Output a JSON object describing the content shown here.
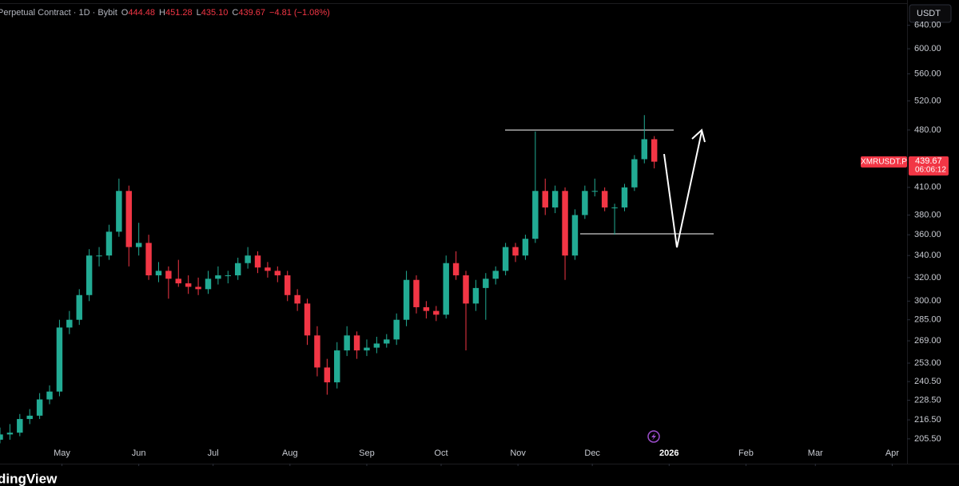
{
  "header": {
    "title": "Perpetual Contract · 1D · Bybit",
    "fields": [
      [
        "O",
        "444.48"
      ],
      [
        "H",
        "451.28"
      ],
      [
        "L",
        "435.10"
      ],
      [
        "C",
        "439.67"
      ]
    ],
    "change": "−4.81 (−1.08%)"
  },
  "currency": "USDT",
  "footer": {
    "brand": "dingView"
  },
  "chart_data": {
    "type": "candlestick",
    "log_scale": true,
    "grid": false,
    "up_color": "#22ab94",
    "down_color": "#f23645",
    "symbol": "XMRUSDT.P",
    "last_price": 439.67,
    "countdown": "06:06:12",
    "xlim": [
      0,
      366
    ],
    "xticks": [
      {
        "value": 25,
        "label": "May"
      },
      {
        "value": 56,
        "label": "Jun"
      },
      {
        "value": 86,
        "label": "Jul"
      },
      {
        "value": 117,
        "label": "Aug"
      },
      {
        "value": 148,
        "label": "Sep"
      },
      {
        "value": 178,
        "label": "Oct"
      },
      {
        "value": 209,
        "label": "Nov"
      },
      {
        "value": 239,
        "label": "Dec"
      },
      {
        "value": 270,
        "label": "2026"
      },
      {
        "value": 301,
        "label": "Feb"
      },
      {
        "value": 329,
        "label": "Mar"
      },
      {
        "value": 360,
        "label": "Apr"
      }
    ],
    "ylim": [
      201,
      686
    ],
    "yticks": [
      {
        "value": 640,
        "label": "640.00"
      },
      {
        "value": 600,
        "label": "600.00"
      },
      {
        "value": 560,
        "label": "560.00"
      },
      {
        "value": 520,
        "label": "520.00"
      },
      {
        "value": 480,
        "label": "480.00"
      },
      {
        "value": 410,
        "label": "410.00"
      },
      {
        "value": 380,
        "label": "380.00"
      },
      {
        "value": 360,
        "label": "360.00"
      },
      {
        "value": 340,
        "label": "340.00"
      },
      {
        "value": 320,
        "label": "320.00"
      },
      {
        "value": 300,
        "label": "300.00"
      },
      {
        "value": 285,
        "label": "285.00"
      },
      {
        "value": 269,
        "label": "269.00"
      },
      {
        "value": 253,
        "label": "253.00"
      },
      {
        "value": 240.5,
        "label": "240.50"
      },
      {
        "value": 228.5,
        "label": "228.50"
      },
      {
        "value": 216.5,
        "label": "216.50"
      },
      {
        "value": 205.5,
        "label": "205.50"
      }
    ],
    "x": [
      0,
      4,
      8,
      12,
      16,
      20,
      24,
      28,
      32,
      36,
      40,
      44,
      48,
      52,
      56,
      60,
      64,
      68,
      72,
      76,
      80,
      84,
      88,
      92,
      96,
      100,
      104,
      108,
      112,
      116,
      120,
      124,
      128,
      132,
      136,
      140,
      144,
      148,
      152,
      156,
      160,
      164,
      168,
      172,
      176,
      180,
      184,
      188,
      192,
      196,
      200,
      204,
      208,
      212,
      216,
      220,
      224,
      228,
      232,
      236,
      240,
      244,
      248,
      252,
      256,
      260,
      264
    ],
    "ohlc": [
      [
        205,
        212,
        203,
        208
      ],
      [
        208,
        214,
        205,
        209
      ],
      [
        209,
        220,
        207,
        217
      ],
      [
        217,
        223,
        214,
        219
      ],
      [
        219,
        233,
        217,
        229
      ],
      [
        229,
        238,
        226,
        234
      ],
      [
        234,
        285,
        231,
        279
      ],
      [
        279,
        292,
        274,
        285
      ],
      [
        285,
        310,
        281,
        305
      ],
      [
        305,
        346,
        300,
        340
      ],
      [
        340,
        348,
        330,
        340
      ],
      [
        340,
        370,
        336,
        363
      ],
      [
        363,
        420,
        358,
        406
      ],
      [
        406,
        412,
        330,
        348
      ],
      [
        348,
        372,
        340,
        352
      ],
      [
        352,
        360,
        318,
        322
      ],
      [
        322,
        334,
        316,
        326
      ],
      [
        326,
        330,
        302,
        319
      ],
      [
        319,
        336,
        312,
        315
      ],
      [
        315,
        322,
        306,
        312
      ],
      [
        312,
        320,
        305,
        310
      ],
      [
        310,
        326,
        306,
        319
      ],
      [
        319,
        330,
        314,
        322
      ],
      [
        322,
        326,
        315,
        322
      ],
      [
        322,
        338,
        318,
        333
      ],
      [
        333,
        348,
        328,
        340
      ],
      [
        340,
        344,
        324,
        329
      ],
      [
        329,
        334,
        320,
        326
      ],
      [
        326,
        330,
        316,
        322
      ],
      [
        322,
        326,
        300,
        305
      ],
      [
        305,
        310,
        292,
        298
      ],
      [
        298,
        302,
        266,
        273
      ],
      [
        273,
        280,
        244,
        250
      ],
      [
        250,
        256,
        232,
        240
      ],
      [
        240,
        268,
        236,
        262
      ],
      [
        262,
        280,
        258,
        273
      ],
      [
        273,
        276,
        256,
        262
      ],
      [
        262,
        270,
        258,
        264
      ],
      [
        264,
        272,
        260,
        267
      ],
      [
        267,
        274,
        264,
        270
      ],
      [
        270,
        290,
        266,
        285
      ],
      [
        285,
        326,
        280,
        318
      ],
      [
        318,
        322,
        290,
        295
      ],
      [
        295,
        300,
        286,
        292
      ],
      [
        292,
        296,
        284,
        289
      ],
      [
        289,
        340,
        286,
        333
      ],
      [
        333,
        344,
        318,
        322
      ],
      [
        322,
        326,
        262,
        298
      ],
      [
        298,
        318,
        292,
        311
      ],
      [
        311,
        324,
        285,
        319
      ],
      [
        319,
        330,
        314,
        326
      ],
      [
        326,
        352,
        322,
        348
      ],
      [
        348,
        352,
        334,
        340
      ],
      [
        340,
        360,
        336,
        356
      ],
      [
        356,
        478,
        352,
        406
      ],
      [
        406,
        420,
        380,
        388
      ],
      [
        388,
        412,
        382,
        406
      ],
      [
        406,
        410,
        318,
        340
      ],
      [
        340,
        386,
        336,
        380
      ],
      [
        380,
        412,
        376,
        406
      ],
      [
        406,
        420,
        400,
        406
      ],
      [
        406,
        410,
        384,
        388
      ],
      [
        388,
        392,
        360,
        388
      ],
      [
        388,
        414,
        384,
        410
      ],
      [
        410,
        448,
        406,
        443
      ],
      [
        443,
        500,
        438,
        468
      ],
      [
        468,
        472,
        432,
        440
      ]
    ]
  }
}
